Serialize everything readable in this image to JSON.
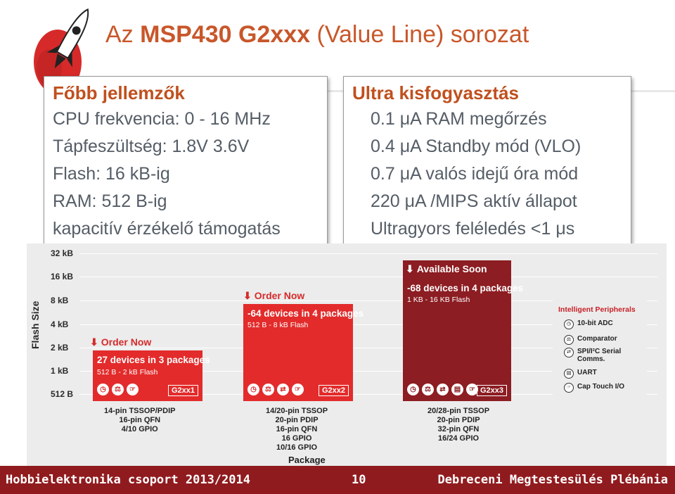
{
  "title": {
    "prefix": "Az ",
    "bold": "MSP430 G2xxx",
    "suffix": " (Value Line) sorozat"
  },
  "left_box": {
    "heading": "Főbb jellemzők",
    "lines": [
      "CPU frekvencia: 0 - 16 MHz",
      "Tápfeszültség: 1.8V  3.6V",
      "Flash: 16 kB-ig",
      "RAM: 512 B-ig",
      "kapacitív érzékelő támogatás"
    ]
  },
  "right_box": {
    "heading": "Ultra kisfogyasztás",
    "lines": [
      "0.1 μA RAM megőrzés",
      "0.4 μA Standby mód (VLO)",
      "0.7 μA valós idejű óra mód",
      "220 μA /MIPS aktív állapot",
      "Ultragyors feléledés <1 μs"
    ]
  },
  "chart": {
    "y_axis_title": "Flash Size",
    "y_ticks": [
      "32 kB",
      "16 kB",
      "8 kB",
      "4 kB",
      "2 kB",
      "1 kB",
      "512 B"
    ],
    "families": [
      {
        "header": "Order Now",
        "title": "27 devices in 3 packages",
        "subtitle": "512 B - 2 kB Flash",
        "tag": "G2xx1",
        "package": "14-pin TSSOP/PDIP\n16-pin QFN\n4/10 GPIO"
      },
      {
        "header": "Order Now",
        "title": "-64 devices in 4 packages",
        "subtitle": "512 B - 8 kB Flash",
        "tag": "G2xx2",
        "package": "14/20-pin TSSOP\n20-pin PDIP\n16-pin QFN\n16 GPIO\n10/16 GPIO"
      },
      {
        "header": "Available Soon",
        "title": "-68 devices in 4 packages",
        "subtitle": "1 KB - 16 KB Flash",
        "tag": "G2xx3",
        "package": "20/28-pin TSSOP\n20-pin PDIP\n32-pin QFN\n16/24 GPIO"
      }
    ],
    "peripherals": {
      "title": "Intelligent Peripherals",
      "items": [
        "10-bit ADC",
        "Comparator",
        "SPI/I²C Serial\nComms.",
        "UART",
        "Cap Touch I/O"
      ]
    },
    "x_axis_title": "Package"
  },
  "footer": {
    "left": "Hobbielektronika csoport 2013/2014",
    "page": "10",
    "right": "Debreceni Megtestesülés Plébánia"
  },
  "colors": {
    "accent": "#c8572a",
    "red_block": "#e32b2b",
    "dark_block": "#8c1d22",
    "footer": "#901b1e"
  }
}
